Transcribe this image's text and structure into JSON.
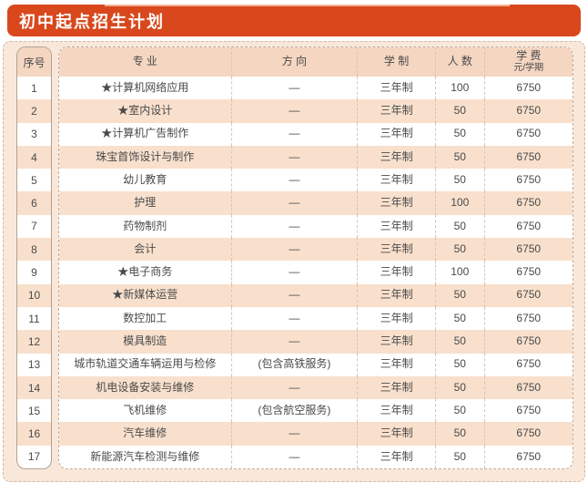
{
  "banner": {
    "title": "初中起点招生计划"
  },
  "colors": {
    "banner_bg": "#d9481c",
    "banner_text": "#ffffff",
    "panel_bg": "#f9e8d9",
    "header_bg": "#f4d6c1",
    "row_shade_bg": "#f8e0cd",
    "text": "#4a4a4a",
    "dashed_border": "#c4ab97"
  },
  "table": {
    "headers": {
      "no": "序号",
      "major": "专 业",
      "direction": "方 向",
      "duration": "学 制",
      "count": "人 数",
      "fee_line1": "学 费",
      "fee_line2": "元/学期"
    },
    "rows": [
      {
        "no": "1",
        "major": "★计算机网络应用",
        "direction": "—",
        "duration": "三年制",
        "count": "100",
        "fee": "6750"
      },
      {
        "no": "2",
        "major": "★室内设计",
        "direction": "—",
        "duration": "三年制",
        "count": "50",
        "fee": "6750"
      },
      {
        "no": "3",
        "major": "★计算机广告制作",
        "direction": "—",
        "duration": "三年制",
        "count": "50",
        "fee": "6750"
      },
      {
        "no": "4",
        "major": "珠宝首饰设计与制作",
        "direction": "—",
        "duration": "三年制",
        "count": "50",
        "fee": "6750"
      },
      {
        "no": "5",
        "major": "幼儿教育",
        "direction": "—",
        "duration": "三年制",
        "count": "50",
        "fee": "6750"
      },
      {
        "no": "6",
        "major": "护理",
        "direction": "—",
        "duration": "三年制",
        "count": "100",
        "fee": "6750"
      },
      {
        "no": "7",
        "major": "药物制剂",
        "direction": "—",
        "duration": "三年制",
        "count": "50",
        "fee": "6750"
      },
      {
        "no": "8",
        "major": "会计",
        "direction": "—",
        "duration": "三年制",
        "count": "50",
        "fee": "6750"
      },
      {
        "no": "9",
        "major": "★电子商务",
        "direction": "—",
        "duration": "三年制",
        "count": "100",
        "fee": "6750"
      },
      {
        "no": "10",
        "major": "★新媒体运营",
        "direction": "—",
        "duration": "三年制",
        "count": "50",
        "fee": "6750"
      },
      {
        "no": "11",
        "major": "数控加工",
        "direction": "—",
        "duration": "三年制",
        "count": "50",
        "fee": "6750"
      },
      {
        "no": "12",
        "major": "模具制造",
        "direction": "—",
        "duration": "三年制",
        "count": "50",
        "fee": "6750"
      },
      {
        "no": "13",
        "major": "城市轨道交通车辆运用与检修",
        "direction": "(包含高铁服务)",
        "duration": "三年制",
        "count": "50",
        "fee": "6750"
      },
      {
        "no": "14",
        "major": "机电设备安装与维修",
        "direction": "—",
        "duration": "三年制",
        "count": "50",
        "fee": "6750"
      },
      {
        "no": "15",
        "major": "飞机维修",
        "direction": "(包含航空服务)",
        "duration": "三年制",
        "count": "50",
        "fee": "6750"
      },
      {
        "no": "16",
        "major": "汽车维修",
        "direction": "—",
        "duration": "三年制",
        "count": "50",
        "fee": "6750"
      },
      {
        "no": "17",
        "major": "新能源汽车检测与维修",
        "direction": "—",
        "duration": "三年制",
        "count": "50",
        "fee": "6750"
      }
    ]
  }
}
